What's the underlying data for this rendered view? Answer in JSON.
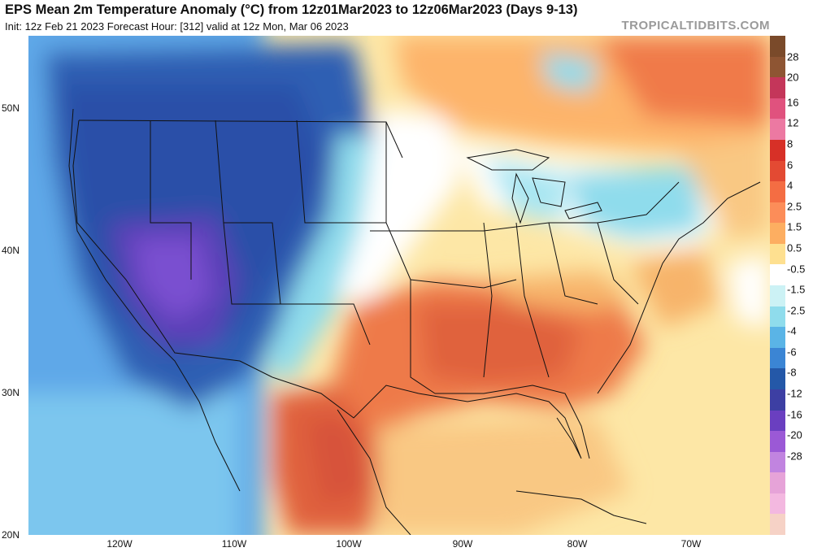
{
  "header": {
    "title": "EPS Mean 2m Temperature Anomaly (°C) from 12z01Mar2023 to 12z06Mar2023 (Days 9-13)",
    "subtitle": "Init: 12z Feb 21 2023   Forecast Hour: [312]   valid at 12z Mon, Mar 06 2023",
    "brand": "TROPICALTIDBITS.COM"
  },
  "axes": {
    "lat_labels": [
      "50N",
      "40N",
      "30N",
      "20N"
    ],
    "lon_labels": [
      "120W",
      "110W",
      "100W",
      "90W",
      "80W",
      "70W"
    ]
  },
  "colorbar": {
    "labels": [
      "28",
      "20",
      "16",
      "12",
      "8",
      "6",
      "4",
      "2.5",
      "1.5",
      "0.5",
      "-0.5",
      "-1.5",
      "-2.5",
      "-4",
      "-6",
      "-8",
      "-12",
      "-16",
      "-20",
      "-28"
    ],
    "colors": [
      "#7a4a2a",
      "#8e5533",
      "#c4365a",
      "#e0527e",
      "#ec79a2",
      "#d73027",
      "#e34a33",
      "#f46d43",
      "#fc8d59",
      "#fdae61",
      "#fee090",
      "#ffffff",
      "#ccf2f5",
      "#8fdcec",
      "#5ab4e6",
      "#3b85d4",
      "#2458a8",
      "#3d3fa3",
      "#6a3fc0",
      "#9b59d6",
      "#c184e0",
      "#e6a3d8",
      "#f3b8e0",
      "#f6d2c6"
    ]
  },
  "colors": {
    "cold_deep": "#5b3fb8",
    "cold": "#2e5fb3",
    "cool": "#5fa8e8",
    "cool_light": "#8fdcec",
    "neutral": "#ffffff",
    "warm_light": "#fde7a6",
    "warm": "#f7b46a",
    "hot": "#ee7a4a",
    "hot_deep": "#d7533a"
  }
}
